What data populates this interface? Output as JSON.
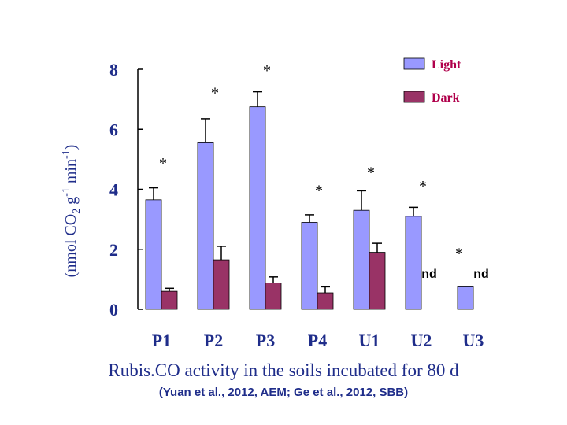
{
  "chart_data": {
    "type": "bar",
    "ylabel_parts": [
      "(nmol CO",
      "2",
      " g",
      "-1",
      " min",
      "-1",
      ")"
    ],
    "categories": [
      "P1",
      "P2",
      "P3",
      "P4",
      "U1",
      "U2",
      "U3"
    ],
    "ylim": [
      0,
      8
    ],
    "yticks": [
      "0",
      "2",
      "4",
      "6",
      "8"
    ],
    "grid": false,
    "legend_placement": "top-right",
    "series": [
      {
        "name": "Light",
        "color": "#9999ff",
        "values": [
          3.65,
          5.55,
          6.75,
          2.9,
          3.3,
          3.1,
          0.75
        ],
        "errors": [
          0.4,
          0.8,
          0.5,
          0.25,
          0.65,
          0.3,
          0.0
        ],
        "annotations": [
          "*",
          "*",
          "*",
          "*",
          "*",
          "*",
          "*"
        ]
      },
      {
        "name": "Dark",
        "color": "#993366",
        "values": [
          0.6,
          1.65,
          0.88,
          0.55,
          1.9,
          null,
          null
        ],
        "errors": [
          0.1,
          0.45,
          0.2,
          0.2,
          0.3,
          null,
          null
        ],
        "value_labels": [
          null,
          null,
          null,
          null,
          null,
          "nd",
          "nd"
        ]
      }
    ]
  },
  "caption": "Rubis.CO activity in the soils incubated for 80 d",
  "citation": "(Yuan et al., 2012, AEM; Ge et al., 2012, SBB)"
}
